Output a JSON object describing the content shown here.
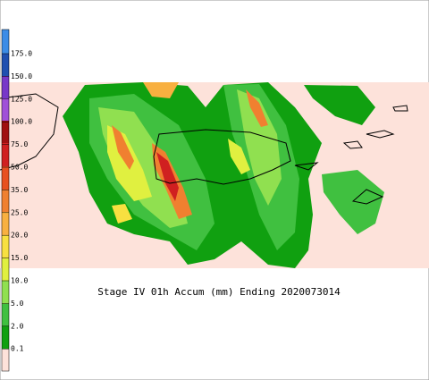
{
  "legend": {
    "labels": [
      "175.0",
      "150.0",
      "125.0",
      "100.0",
      "75.0",
      "50.0",
      "35.0",
      "25.0",
      "20.0",
      "15.0",
      "10.0",
      "5.0",
      "2.0",
      "0.1"
    ]
  },
  "caption": "Stage IV 01h Accum (mm) Ending 2020073014"
}
